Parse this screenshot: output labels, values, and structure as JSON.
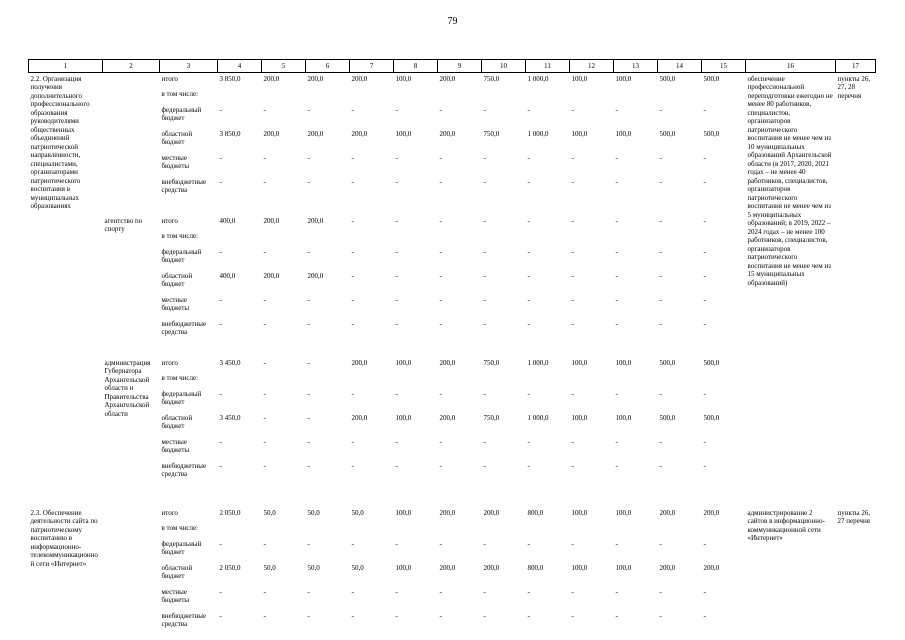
{
  "page_number": "79",
  "table": {
    "column_numbers": [
      "1",
      "2",
      "3",
      "4",
      "5",
      "6",
      "7",
      "8",
      "9",
      "10",
      "11",
      "12",
      "13",
      "14",
      "15",
      "16",
      "17"
    ],
    "sections": [
      {
        "activity": "2.2. Организация получения дополнительного профессионального образования руководителями общественных объединений патриотической направленности, специалистами, организаторами патриотического воспитания в муниципальных образованиях",
        "result": "обеспечение профессиональной переподготовки ежегодно не менее 80 работников, специалистов, организаторов патриотического воспитания не менее чем из 10 муниципальных образований Архангельской области (в 2017, 2020, 2021 годах – не менее 40 работников, специалистов, организаторов патриотического воспитания не менее чем из 5 муниципальных образований; в 2019, 2022 – 2024 годах – не менее 100 работников, специалистов, организаторов патриотического воспитания не менее чем из 15 муниципальных образований)",
        "basis": "пункты 26, 27, 28 перечня",
        "blocks": [
          {
            "executor": "",
            "rows": [
              {
                "label": "итого",
                "values": [
                  "3 850,0",
                  "200,0",
                  "200,0",
                  "200,0",
                  "100,0",
                  "200,0",
                  "750,0",
                  "1 000,0",
                  "100,0",
                  "100,0",
                  "500,0",
                  "500,0"
                ]
              },
              {
                "label": "в том числе:",
                "values": []
              },
              {
                "label": "федеральный бюджет",
                "values": [
                  "-",
                  "-",
                  "-",
                  "-",
                  "-",
                  "-",
                  "-",
                  "-",
                  "-",
                  "-",
                  "-",
                  "-"
                ]
              },
              {
                "label": "областной бюджет",
                "values": [
                  "3 850,0",
                  "200,0",
                  "200,0",
                  "200,0",
                  "100,0",
                  "200,0",
                  "750,0",
                  "1 000,0",
                  "100,0",
                  "100,0",
                  "500,0",
                  "500,0"
                ]
              },
              {
                "label": "местные бюджеты",
                "values": [
                  "-",
                  "-",
                  "-",
                  "-",
                  "-",
                  "-",
                  "-",
                  "-",
                  "-",
                  "-",
                  "-",
                  "-"
                ]
              },
              {
                "label": "внебюджетные средства",
                "values": [
                  "-",
                  "-",
                  "-",
                  "-",
                  "-",
                  "-",
                  "-",
                  "-",
                  "-",
                  "-",
                  "-",
                  "-"
                ]
              }
            ]
          },
          {
            "executor": "агентство по спорту",
            "rows": [
              {
                "label": "итого",
                "values": [
                  "400,0",
                  "200,0",
                  "200,0",
                  "-",
                  "-",
                  "-",
                  "-",
                  "-",
                  "-",
                  "-",
                  "-",
                  "-"
                ]
              },
              {
                "label": "в том числе:",
                "values": []
              },
              {
                "label": "федеральный бюджет",
                "values": [
                  "-",
                  "-",
                  "-",
                  "-",
                  "-",
                  "-",
                  "-",
                  "-",
                  "-",
                  "-",
                  "-",
                  "-"
                ]
              },
              {
                "label": "областной бюджет",
                "values": [
                  "400,0",
                  "200,0",
                  "200,0",
                  "-",
                  "-",
                  "-",
                  "-",
                  "-",
                  "-",
                  "-",
                  "-",
                  "-"
                ]
              },
              {
                "label": "местные бюджеты",
                "values": [
                  "-",
                  "-",
                  "-",
                  "-",
                  "-",
                  "-",
                  "-",
                  "-",
                  "-",
                  "-",
                  "-",
                  "-"
                ]
              },
              {
                "label": "внебюджетные средства",
                "values": [
                  "-",
                  "-",
                  "-",
                  "-",
                  "-",
                  "-",
                  "-",
                  "-",
                  "-",
                  "-",
                  "-",
                  "-"
                ]
              }
            ]
          },
          {
            "executor": "администрация Губернатора Архангельской области и Правительства Архангельской области",
            "rows": [
              {
                "label": "итого",
                "values": [
                  "3 450,0",
                  "-",
                  "-",
                  "200,0",
                  "100,0",
                  "200,0",
                  "750,0",
                  "1 000,0",
                  "100,0",
                  "100,0",
                  "500,0",
                  "500,0"
                ]
              },
              {
                "label": "в том числе:",
                "values": []
              },
              {
                "label": "федеральный бюджет",
                "values": [
                  "-",
                  "-",
                  "-",
                  "-",
                  "-",
                  "-",
                  "-",
                  "-",
                  "-",
                  "-",
                  "-",
                  "-"
                ]
              },
              {
                "label": "областной бюджет",
                "values": [
                  "3 450,0",
                  "-",
                  "-",
                  "200,0",
                  "100,0",
                  "200,0",
                  "750,0",
                  "1 000,0",
                  "100,0",
                  "100,0",
                  "500,0",
                  "500,0"
                ]
              },
              {
                "label": "местные бюджеты",
                "values": [
                  "-",
                  "-",
                  "-",
                  "-",
                  "-",
                  "-",
                  "-",
                  "-",
                  "-",
                  "-",
                  "-",
                  "-"
                ]
              },
              {
                "label": "внебюджетные средства",
                "values": [
                  "-",
                  "-",
                  "-",
                  "-",
                  "-",
                  "-",
                  "-",
                  "-",
                  "-",
                  "-",
                  "-",
                  "-"
                ]
              }
            ]
          }
        ]
      },
      {
        "activity": "2.3. Обеспечение деятельности сайта по патриотическому воспитанию в информационно-телекоммуникационной сети «Интернет»",
        "result": "администрирование 2 сайтов в информационно-коммуникационной сети «Интернет»",
        "basis": "пункты 26, 27 перечня",
        "blocks": [
          {
            "executor": "",
            "rows": [
              {
                "label": "итого",
                "values": [
                  "2 050,0",
                  "50,0",
                  "50,0",
                  "50,0",
                  "100,0",
                  "200,0",
                  "200,0",
                  "800,0",
                  "100,0",
                  "100,0",
                  "200,0",
                  "200,0"
                ]
              },
              {
                "label": "в том числе:",
                "values": []
              },
              {
                "label": "федеральный бюджет",
                "values": [
                  "-",
                  "-",
                  "-",
                  "-",
                  "-",
                  "-",
                  "-",
                  "-",
                  "-",
                  "-",
                  "-",
                  "-"
                ]
              },
              {
                "label": "областной бюджет",
                "values": [
                  "2 050,0",
                  "50,0",
                  "50,0",
                  "50,0",
                  "100,0",
                  "200,0",
                  "200,0",
                  "800,0",
                  "100,0",
                  "100,0",
                  "200,0",
                  "200,0"
                ]
              },
              {
                "label": "местные бюджеты",
                "values": [
                  "-",
                  "-",
                  "-",
                  "-",
                  "-",
                  "-",
                  "-",
                  "-",
                  "-",
                  "-",
                  "-",
                  "-"
                ]
              },
              {
                "label": "внебюджетные средства",
                "values": [
                  "-",
                  "-",
                  "-",
                  "-",
                  "-",
                  "-",
                  "-",
                  "-",
                  "-",
                  "-",
                  "-",
                  "-"
                ]
              }
            ]
          }
        ]
      }
    ]
  }
}
